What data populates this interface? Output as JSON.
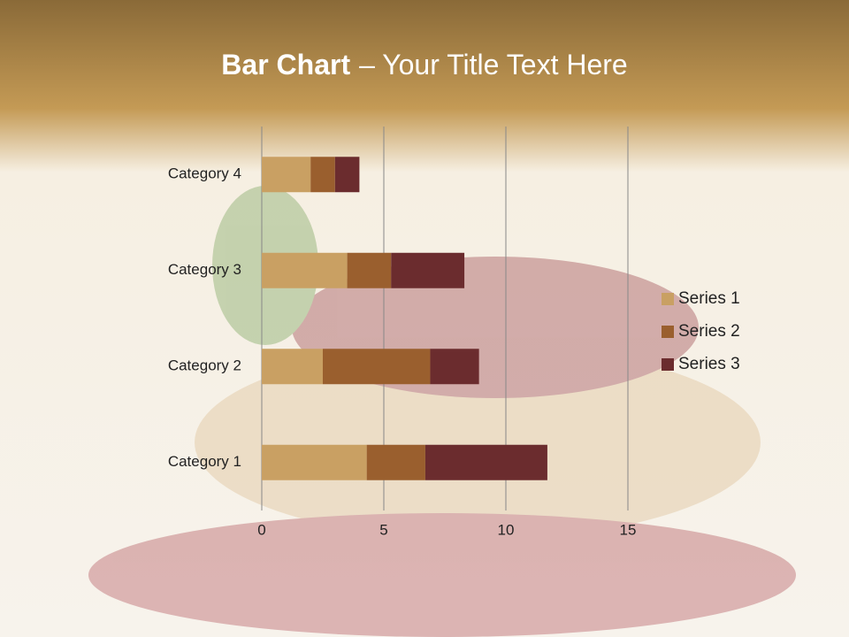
{
  "slide_title": {
    "bold": "Bar Chart",
    "rest": "– Your Title Text Here"
  },
  "chart_data": {
    "type": "stacked-barh",
    "categories": [
      "Category 1",
      "Category 2",
      "Category 3",
      "Category 4"
    ],
    "series": [
      {
        "name": "Series 1",
        "color": "#c9a063",
        "values": [
          4.3,
          2.5,
          3.5,
          2
        ]
      },
      {
        "name": "Series 2",
        "color": "#9a5f2e",
        "values": [
          2.4,
          4.4,
          1.8,
          1
        ]
      },
      {
        "name": "Series 3",
        "color": "#6b2c2e",
        "values": [
          5,
          2,
          3,
          1
        ]
      }
    ],
    "xlim": [
      0,
      15
    ],
    "xticks": [
      0,
      5,
      10,
      15
    ],
    "grid": true,
    "legend": "right"
  }
}
